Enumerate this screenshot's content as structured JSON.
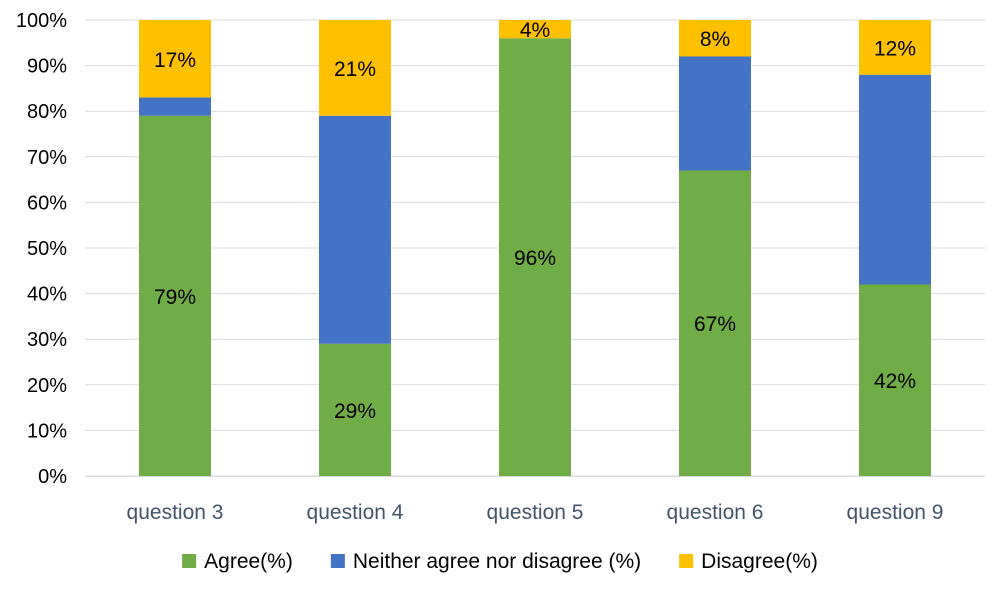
{
  "chart_data": {
    "type": "bar",
    "stacked": true,
    "percent_stacked": true,
    "categories": [
      "question 3",
      "question 4",
      "question 5",
      "question 6",
      "question 9"
    ],
    "series": [
      {
        "name": "Agree(%)",
        "color": "#70ad47",
        "values": [
          79,
          29,
          96,
          67,
          42
        ]
      },
      {
        "name": "Neither agree nor disagree (%)",
        "color": "#4472c4",
        "values": [
          4,
          50,
          0,
          25,
          46
        ]
      },
      {
        "name": "Disagree(%)",
        "color": "#ffc000",
        "values": [
          17,
          21,
          4,
          8,
          12
        ]
      }
    ],
    "data_labels": [
      {
        "category": "question 3",
        "series": "Agree(%)",
        "text": "79%"
      },
      {
        "category": "question 3",
        "series": "Disagree(%)",
        "text": "17%"
      },
      {
        "category": "question 4",
        "series": "Agree(%)",
        "text": "29%"
      },
      {
        "category": "question 4",
        "series": "Disagree(%)",
        "text": "21%"
      },
      {
        "category": "question 5",
        "series": "Agree(%)",
        "text": "96%"
      },
      {
        "category": "question 5",
        "series": "Disagree(%)",
        "text": "4%"
      },
      {
        "category": "question 6",
        "series": "Agree(%)",
        "text": "67%"
      },
      {
        "category": "question 6",
        "series": "Disagree(%)",
        "text": "8%"
      },
      {
        "category": "question 9",
        "series": "Agree(%)",
        "text": "42%"
      },
      {
        "category": "question 9",
        "series": "Disagree(%)",
        "text": "12%"
      }
    ],
    "y_ticks": [
      "0%",
      "10%",
      "20%",
      "30%",
      "40%",
      "50%",
      "60%",
      "70%",
      "80%",
      "90%",
      "100%"
    ],
    "ylim": [
      0,
      100
    ],
    "grid": true,
    "legend_position": "bottom",
    "title": "",
    "xlabel": "",
    "ylabel": ""
  }
}
